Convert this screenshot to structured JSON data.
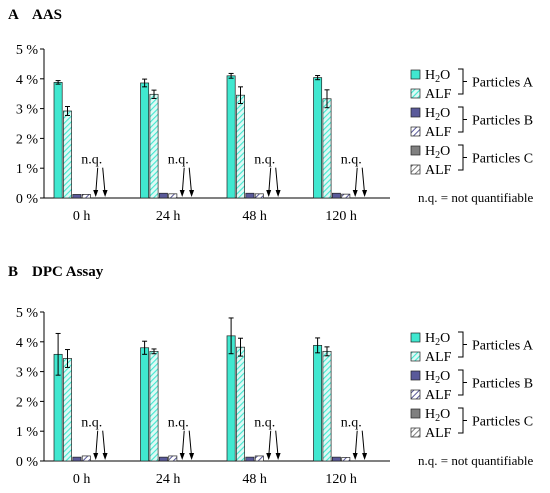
{
  "colors": {
    "h2o_a": "#40E8D0",
    "alf_a": "#40E8D0",
    "h2o_b": "#5A5A9A",
    "alf_b": "#5A5A9A",
    "h2o_c": "#808080",
    "alf_c": "#808080",
    "edge": "#222222"
  },
  "legend": {
    "h2o_label": "H",
    "h2o_sub": "2",
    "h2o_tail": "O",
    "alf_label": "ALF",
    "groups": [
      "Particles A",
      "Particles B",
      "Particles C"
    ],
    "nq_note": "n.q. = not quantifiable"
  },
  "chart_data": [
    {
      "type": "bar",
      "panel": "A",
      "title": "AAS",
      "categories": [
        "0 h",
        "24 h",
        "48 h",
        "120 h"
      ],
      "ylim": [
        0,
        5
      ],
      "yticks": [
        "0 %",
        "1 %",
        "2 %",
        "3 %",
        "4 %",
        "5 %"
      ],
      "grid": false,
      "legend_position": "right",
      "nq_label": "n.q.",
      "series": [
        {
          "group": "A",
          "medium": "H2O",
          "values": [
            3.88,
            3.86,
            4.1,
            4.04
          ],
          "errors": [
            0.06,
            0.13,
            0.08,
            0.07
          ]
        },
        {
          "group": "A",
          "medium": "ALF",
          "values": [
            2.92,
            3.48,
            3.45,
            3.33
          ],
          "errors": [
            0.15,
            0.14,
            0.28,
            0.3
          ]
        },
        {
          "group": "B",
          "medium": "H2O",
          "values": [
            0.12,
            0.16,
            0.16,
            0.16
          ],
          "errors": [
            0.01,
            0.01,
            0.01,
            0.01
          ]
        },
        {
          "group": "B",
          "medium": "ALF",
          "values": [
            0.12,
            0.14,
            0.14,
            0.13
          ],
          "errors": [
            0.01,
            0.01,
            0.01,
            0.01
          ]
        },
        {
          "group": "C",
          "medium": "H2O",
          "values": [
            null,
            null,
            null,
            null
          ],
          "errors": [
            null,
            null,
            null,
            null
          ]
        },
        {
          "group": "C",
          "medium": "ALF",
          "values": [
            null,
            null,
            null,
            null
          ],
          "errors": [
            null,
            null,
            null,
            null
          ]
        }
      ]
    },
    {
      "type": "bar",
      "panel": "B",
      "title": "DPC Assay",
      "categories": [
        "0 h",
        "24 h",
        "48 h",
        "120 h"
      ],
      "ylim": [
        0,
        5
      ],
      "yticks": [
        "0 %",
        "1 %",
        "2 %",
        "3 %",
        "4 %",
        "5 %"
      ],
      "grid": false,
      "legend_position": "right",
      "nq_label": "n.q.",
      "series": [
        {
          "group": "A",
          "medium": "H2O",
          "values": [
            3.58,
            3.8,
            4.2,
            3.88
          ],
          "errors": [
            0.7,
            0.22,
            0.6,
            0.25
          ]
        },
        {
          "group": "A",
          "medium": "ALF",
          "values": [
            3.44,
            3.68,
            3.82,
            3.68
          ],
          "errors": [
            0.3,
            0.08,
            0.3,
            0.15
          ]
        },
        {
          "group": "B",
          "medium": "H2O",
          "values": [
            0.13,
            0.13,
            0.13,
            0.13
          ],
          "errors": [
            0.01,
            0.01,
            0.01,
            0.01
          ]
        },
        {
          "group": "B",
          "medium": "ALF",
          "values": [
            0.17,
            0.17,
            0.17,
            0.12
          ],
          "errors": [
            0.02,
            0.02,
            0.02,
            0.02
          ]
        },
        {
          "group": "C",
          "medium": "H2O",
          "values": [
            null,
            null,
            null,
            null
          ],
          "errors": [
            null,
            null,
            null,
            null
          ]
        },
        {
          "group": "C",
          "medium": "ALF",
          "values": [
            null,
            null,
            null,
            null
          ],
          "errors": [
            null,
            null,
            null,
            null
          ]
        }
      ]
    }
  ]
}
